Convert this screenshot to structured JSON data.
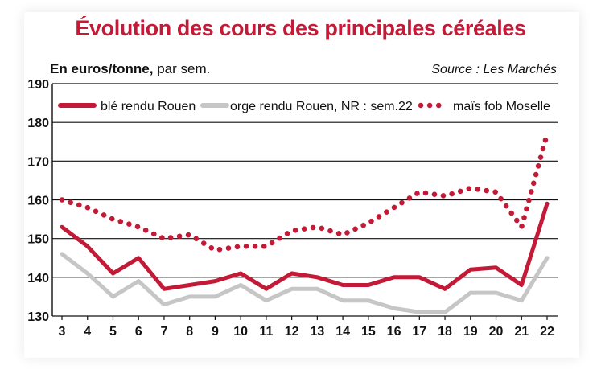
{
  "header": {
    "title": "Évolution des cours des principales céréales",
    "unit_bold": "En euros/tonne,",
    "unit_rest": " par sem.",
    "source": "Source : Les Marchés"
  },
  "chart_data": {
    "type": "line",
    "title": "Évolution des cours des principales céréales",
    "ylabel": "En euros/tonne, par sem.",
    "xlabel": "",
    "x": [
      3,
      4,
      5,
      6,
      7,
      8,
      9,
      10,
      11,
      12,
      13,
      14,
      15,
      16,
      17,
      18,
      19,
      20,
      21,
      22
    ],
    "ylim": [
      130,
      190
    ],
    "yticks": [
      130,
      140,
      150,
      160,
      170,
      180,
      190
    ],
    "grid": true,
    "legend_position": "top",
    "series": [
      {
        "name": "blé rendu Rouen",
        "color": "#c21a37",
        "style": "solid",
        "values": [
          153,
          148,
          141,
          145,
          137,
          138,
          139,
          141,
          137,
          141,
          140,
          138,
          138,
          140,
          140,
          137,
          142,
          142.5,
          138,
          159
        ]
      },
      {
        "name": "orge rendu Rouen, NR : sem.22",
        "color": "#c6c6c6",
        "style": "solid",
        "values": [
          146,
          141,
          135,
          139,
          133,
          135,
          135,
          138,
          134,
          137,
          137,
          134,
          134,
          132,
          131,
          131,
          136,
          136,
          134,
          145
        ]
      },
      {
        "name": "maïs fob Moselle",
        "color": "#c21a37",
        "style": "dotted",
        "values": [
          160,
          158,
          155,
          153,
          150,
          151,
          147,
          148,
          148,
          152,
          153,
          151,
          154,
          158,
          162,
          161,
          163,
          162,
          153,
          177
        ]
      }
    ]
  }
}
